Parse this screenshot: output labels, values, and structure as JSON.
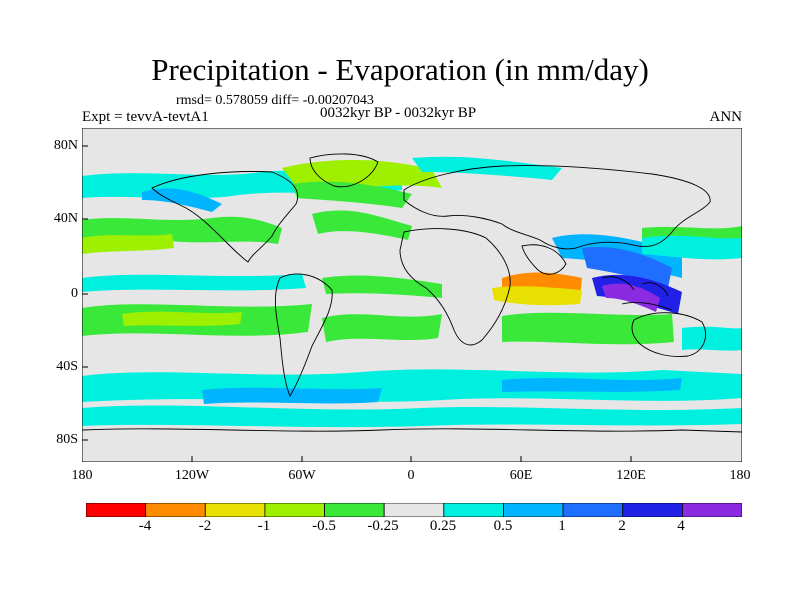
{
  "title": "Precipitation - Evaporation (in mm/day)",
  "stats": "rmsd= 0.578059 diff= -0.00207043",
  "experiment": "Expt = tevvA-tevtA1",
  "period": "0032kyr BP - 0032kyr BP",
  "season": "ANN",
  "lat_ticks": [
    "80N",
    "40N",
    "0",
    "40S",
    "80S"
  ],
  "lon_ticks": [
    "180",
    "120W",
    "60W",
    "0",
    "60E",
    "120E",
    "180"
  ],
  "colorbar": {
    "labels": [
      "-4",
      "-2",
      "-1",
      "-0.5",
      "-0.25",
      "0.25",
      "0.5",
      "1",
      "2",
      "4"
    ],
    "colors": [
      "#ff0000",
      "#ff8c00",
      "#e8e000",
      "#9fef00",
      "#3ae83a",
      "#e6e6e6",
      "#00f0e0",
      "#00b4ff",
      "#1e6eff",
      "#2020e6",
      "#8a2be2"
    ]
  }
}
